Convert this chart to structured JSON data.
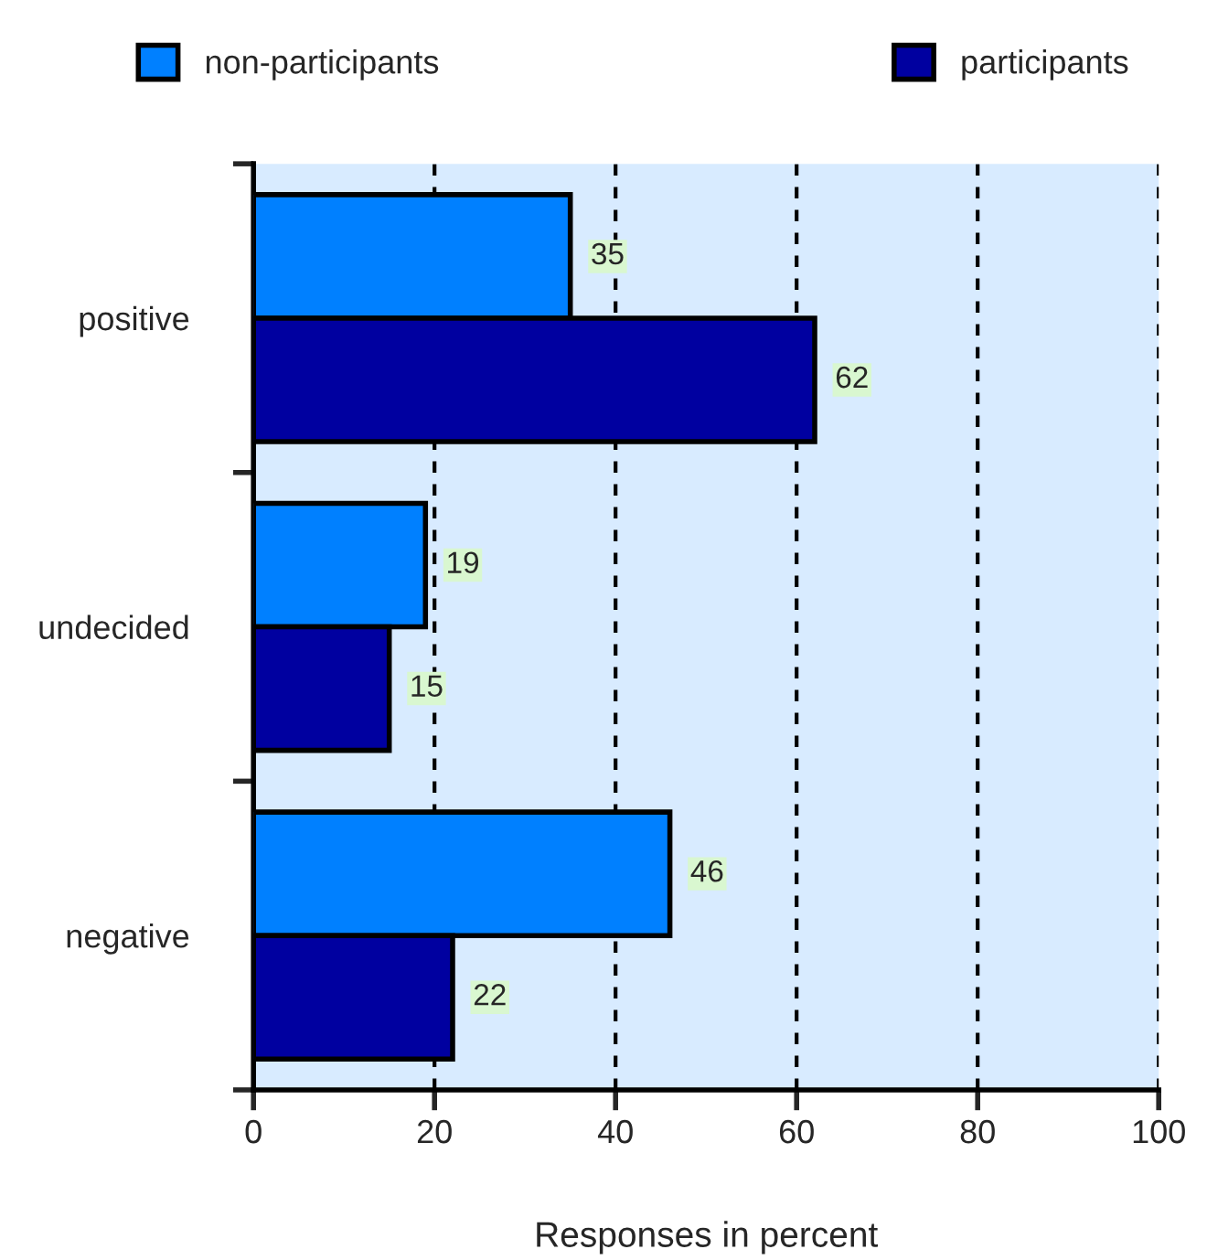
{
  "chart_data": {
    "type": "bar",
    "orientation": "horizontal",
    "xlabel": "Responses in percent",
    "categories": [
      "positive",
      "undecided",
      "negative"
    ],
    "series": [
      {
        "name": "non-participants",
        "color": "#0080ff",
        "values": [
          35,
          19,
          46
        ]
      },
      {
        "name": "participants",
        "color": "#0000a0",
        "values": [
          62,
          15,
          22
        ]
      }
    ],
    "xlim": [
      0,
      100
    ],
    "xticks": [
      0,
      20,
      40,
      60,
      80,
      100
    ],
    "grid": "x",
    "legend": "top",
    "data_labels": true
  }
}
